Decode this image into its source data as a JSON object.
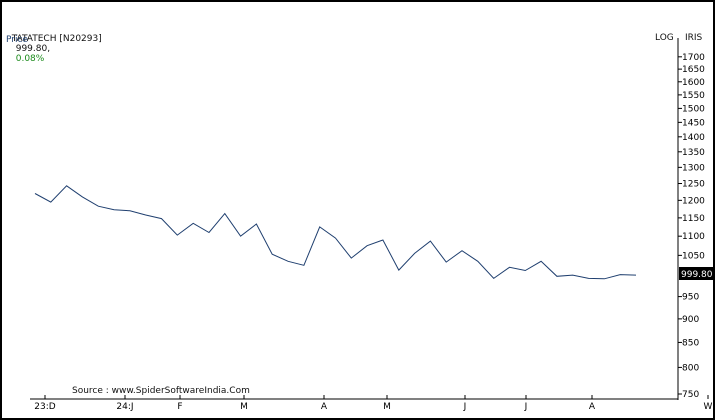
{
  "header": {
    "symbol": "TATATECH [N20293]",
    "last_price": "999.80,",
    "change": "0.08%",
    "series_label": "Price"
  },
  "axis_flags": {
    "log": "LOG",
    "iris": "IRIS"
  },
  "source_note": "Source : www.SpiderSoftwareIndia.Com",
  "current_price_tag": "999.80",
  "colors": {
    "line": "#1f3f6f",
    "change": "#1a8a1a",
    "border": "#000000",
    "tag_bg": "#000000",
    "tag_text": "#ffffff"
  },
  "chart_data": {
    "type": "line",
    "title": "TATATECH [N20293]",
    "series": [
      {
        "name": "Price",
        "values": [
          1220,
          1195,
          1243,
          1210,
          1183,
          1173,
          1170,
          1158,
          1148,
          1103,
          1135,
          1110,
          1162,
          1100,
          1133,
          1053,
          1035,
          1025,
          1125,
          1095,
          1043,
          1075,
          1090,
          1013,
          1055,
          1087,
          1033,
          1062,
          1035,
          993,
          1020,
          1012,
          1035,
          998,
          1001,
          993,
          992,
          1002,
          1001
        ]
      }
    ],
    "y_scale": "log",
    "ylim": [
      750,
      1720
    ],
    "y_ticks": [
      1700,
      1650,
      1600,
      1550,
      1500,
      1450,
      1400,
      1350,
      1300,
      1250,
      1200,
      1150,
      1100,
      1050,
      950,
      900,
      850,
      800,
      750
    ],
    "x_tick_labels": [
      "23:D",
      "24:J",
      "F",
      "M",
      "A",
      "M",
      "J",
      "J",
      "A",
      "W"
    ],
    "grid": false,
    "legend": "none"
  }
}
